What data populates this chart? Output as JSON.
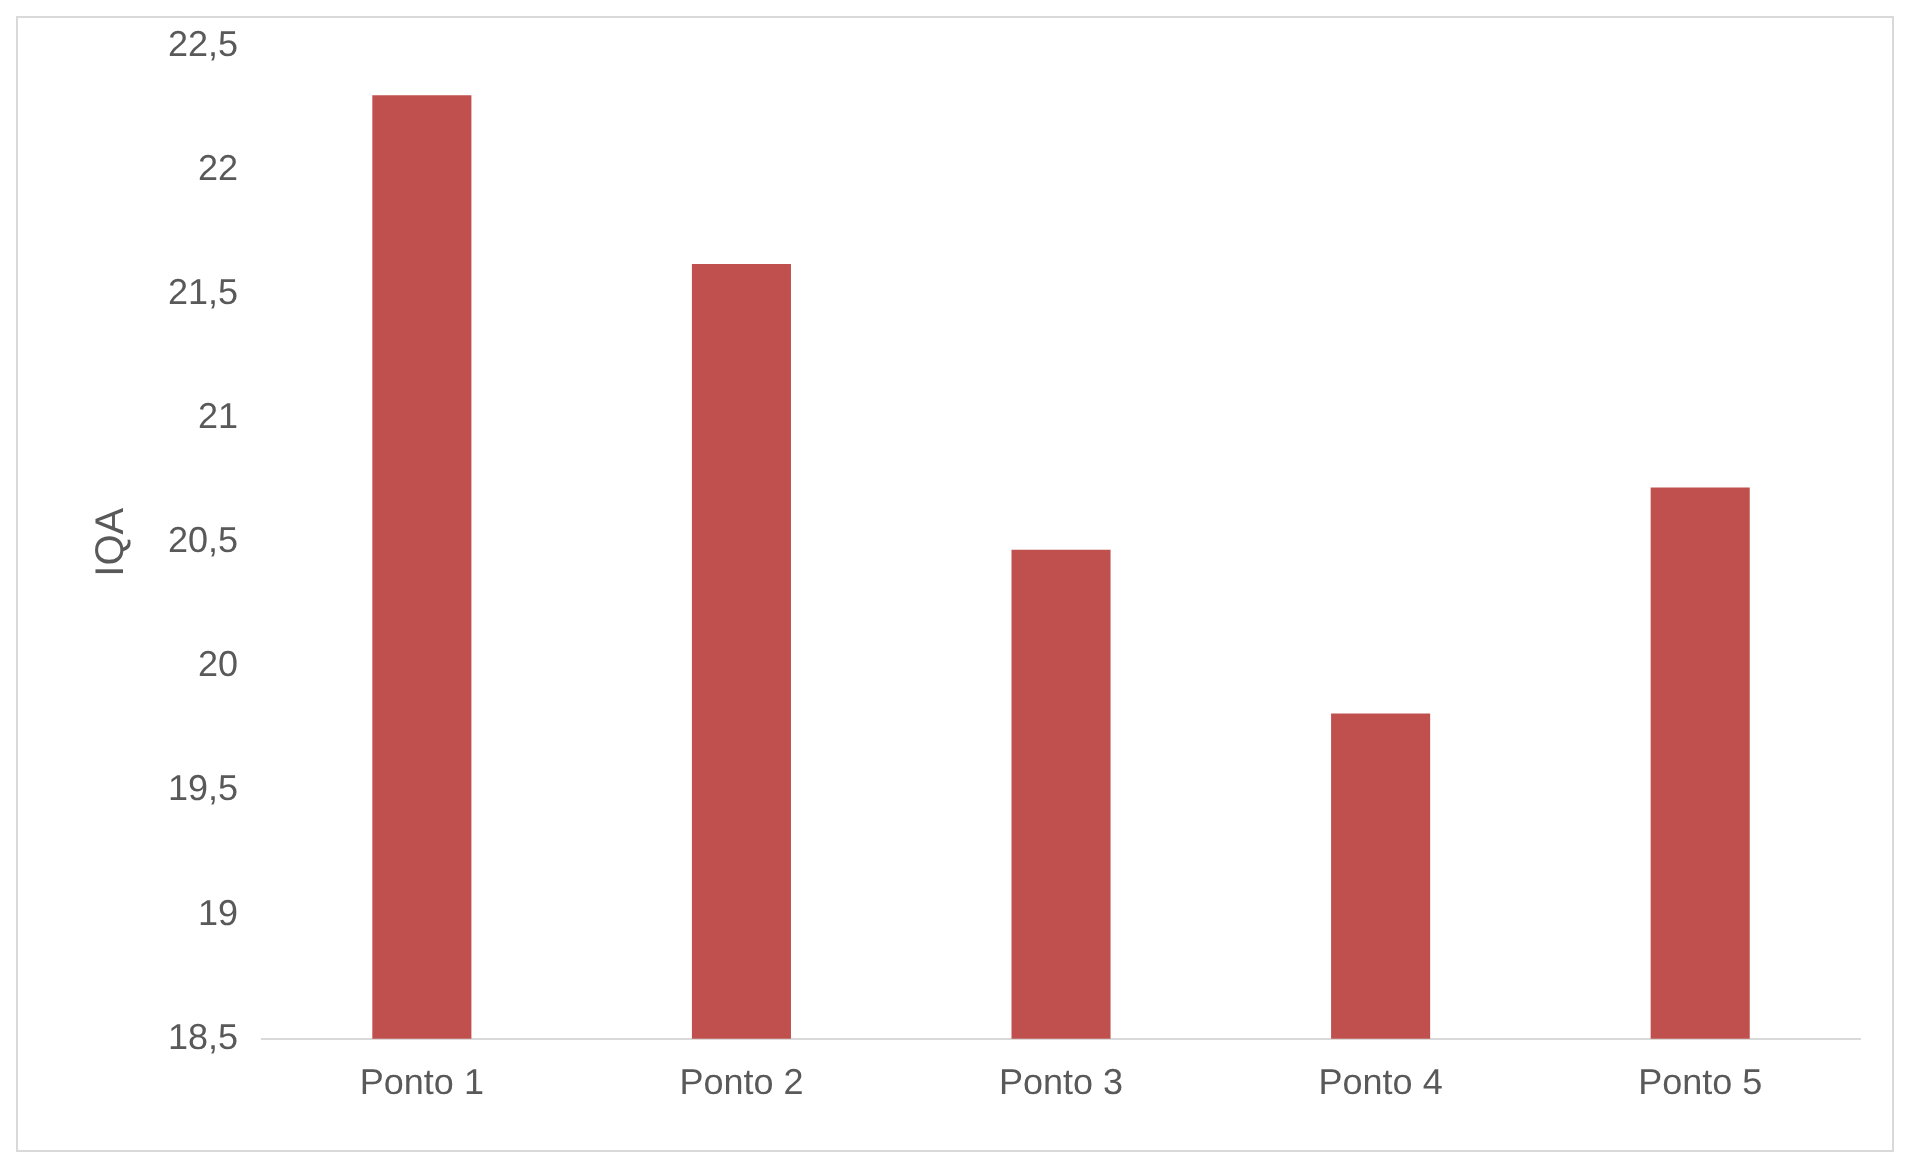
{
  "chart_data": {
    "type": "bar",
    "ylabel": "IQA",
    "categories": [
      "Ponto 1",
      "Ponto 2",
      "Ponto 3",
      "Ponto 4",
      "Ponto 5"
    ],
    "values": [
      22.3,
      21.62,
      20.47,
      19.81,
      20.72
    ],
    "color": "#c0504d",
    "ylim": [
      18.5,
      22.5
    ],
    "yticks": [
      {
        "value": 18.5,
        "label": "18,5"
      },
      {
        "value": 19,
        "label": "19"
      },
      {
        "value": 19.5,
        "label": "19,5"
      },
      {
        "value": 20,
        "label": "20"
      },
      {
        "value": 20.5,
        "label": "20,5"
      },
      {
        "value": 21,
        "label": "21"
      },
      {
        "value": 21.5,
        "label": "21,5"
      },
      {
        "value": 22,
        "label": "22"
      },
      {
        "value": 22.5,
        "label": "22,5"
      }
    ],
    "grid": false,
    "legend": false
  }
}
